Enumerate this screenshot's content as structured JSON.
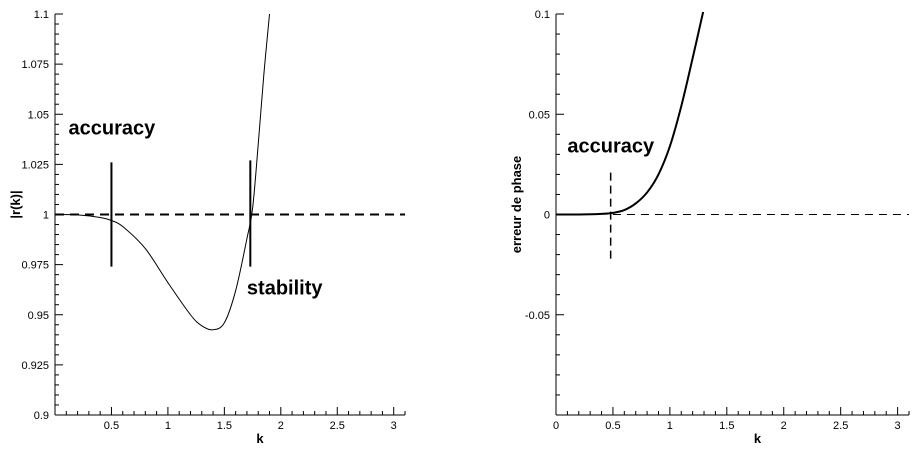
{
  "chart_data": [
    {
      "type": "line",
      "title": "",
      "xlabel": "k",
      "ylabel": "|r(k)|",
      "xlim": [
        0,
        3.1
      ],
      "ylim": [
        0.9,
        1.1
      ],
      "x_ticks": [
        0.5,
        1,
        1.5,
        2,
        2.5,
        3
      ],
      "x_tick_labels": [
        "0.5",
        "1",
        "1.5",
        "2",
        "2.5",
        "3"
      ],
      "y_ticks": [
        0.9,
        0.925,
        0.95,
        0.975,
        1,
        1.025,
        1.05,
        1.075,
        1.1
      ],
      "y_tick_labels": [
        "0.9",
        "0.925",
        "0.95",
        "0.975",
        "1",
        "1.025",
        "1.05",
        "1.075",
        "1.1"
      ],
      "grid": false,
      "series": [
        {
          "style": "solid-thin",
          "x": [
            0,
            0.2,
            0.4,
            0.5,
            0.6,
            0.8,
            1.0,
            1.2,
            1.3,
            1.4,
            1.5,
            1.6,
            1.7,
            1.75,
            1.8,
            1.85,
            1.9
          ],
          "y": [
            1.0,
            0.9998,
            0.9985,
            0.997,
            0.994,
            0.983,
            0.966,
            0.95,
            0.9445,
            0.9425,
            0.946,
            0.962,
            0.988,
            1.003,
            1.035,
            1.07,
            1.1
          ]
        },
        {
          "style": "dashed-thick",
          "x": [
            0,
            3.1
          ],
          "y": [
            1.0,
            1.0
          ]
        }
      ],
      "markers": [
        {
          "x": 0.5,
          "y_from": 0.974,
          "y_to": 1.026,
          "style": "solid"
        },
        {
          "x": 1.73,
          "y_from": 0.974,
          "y_to": 1.027,
          "style": "solid"
        }
      ],
      "annotations": [
        {
          "text": "accuracy",
          "x": 0.12,
          "y": 1.04
        },
        {
          "text": "stability",
          "x": 1.7,
          "y": 0.96
        }
      ]
    },
    {
      "type": "line",
      "title": "",
      "xlabel": "k",
      "ylabel": "erreur de phase",
      "xlim": [
        0,
        3.1
      ],
      "ylim": [
        -0.1,
        0.1
      ],
      "x_ticks": [
        0,
        0.5,
        1,
        1.5,
        2,
        2.5,
        3
      ],
      "x_tick_labels": [
        "0",
        "0.5",
        "1",
        "1.5",
        "2",
        "2.5",
        "3"
      ],
      "y_ticks": [
        -0.05,
        0,
        0.05,
        0.1
      ],
      "y_tick_labels": [
        "-0.05",
        "0",
        "0.05",
        "0.1"
      ],
      "grid": false,
      "series": [
        {
          "style": "solid-thick",
          "x": [
            0,
            0.2,
            0.4,
            0.5,
            0.6,
            0.7,
            0.8,
            0.9,
            1.0,
            1.1,
            1.2,
            1.3
          ],
          "y": [
            0.0,
            0.0,
            0.0003,
            0.0008,
            0.0022,
            0.0055,
            0.011,
            0.02,
            0.034,
            0.054,
            0.078,
            0.103
          ]
        },
        {
          "style": "dashed-thin",
          "x": [
            0.5,
            3.1
          ],
          "y": [
            0.0,
            0.0
          ]
        }
      ],
      "markers": [
        {
          "x": 0.48,
          "y_from": -0.022,
          "y_to": 0.021,
          "style": "dashed"
        }
      ],
      "annotations": [
        {
          "text": "accuracy",
          "x": 0.1,
          "y": 0.031
        }
      ]
    }
  ]
}
